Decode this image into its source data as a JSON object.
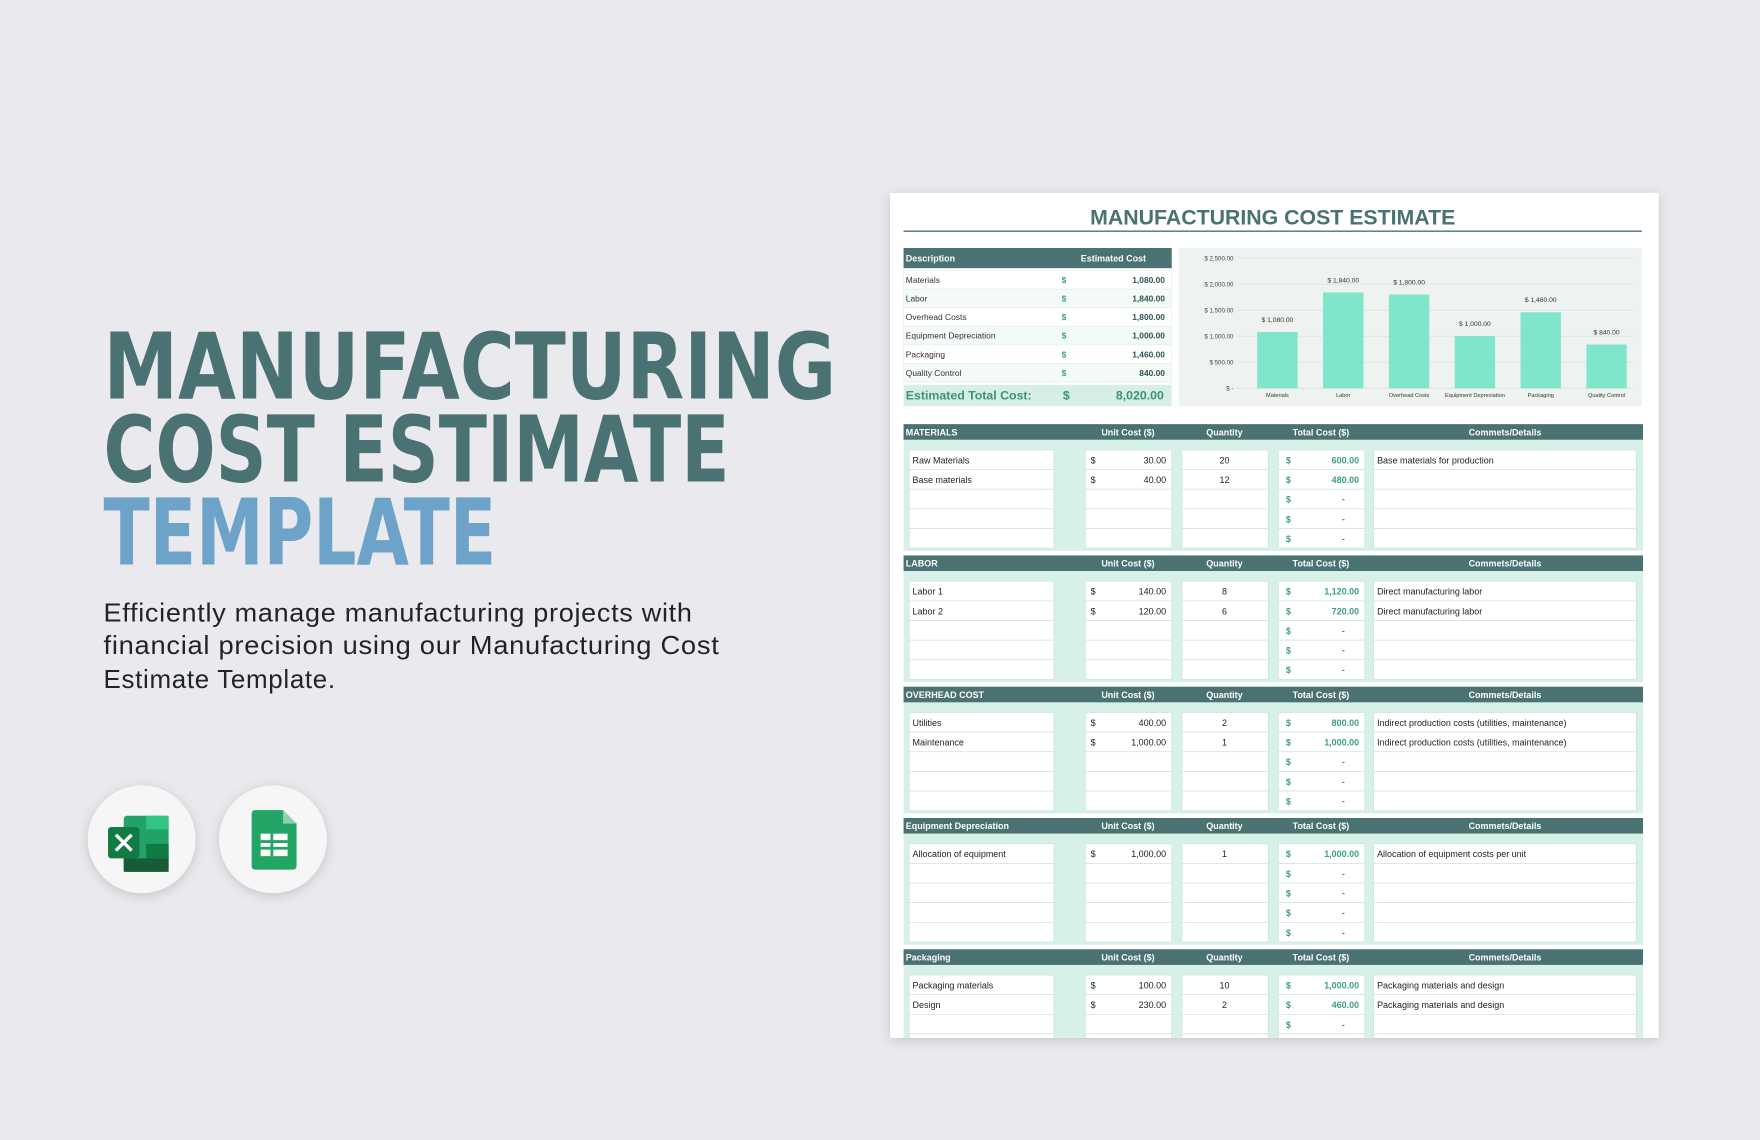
{
  "hero": {
    "title_lines": [
      "MANUFACTURING",
      "COST ESTIMATE"
    ],
    "title_accent": "TEMPLATE",
    "description_lines": [
      "Efficiently manage manufacturing projects with",
      "financial precision using our Manufacturing Cost",
      "Estimate Template."
    ]
  },
  "sheet": {
    "title": "MANUFACTURING COST ESTIMATE",
    "currency": "$",
    "blank_total": "-",
    "summary": {
      "headers": [
        "Description",
        "Estimated Cost"
      ],
      "rows": [
        {
          "label": "Materials",
          "value": "1,080.00"
        },
        {
          "label": "Labor",
          "value": "1,840.00"
        },
        {
          "label": "Overhead Costs",
          "value": "1,800.00"
        },
        {
          "label": "Equipment Depreciation",
          "value": "1,000.00"
        },
        {
          "label": "Packaging",
          "value": "1,460.00"
        },
        {
          "label": "Quality Control",
          "value": "840.00"
        }
      ],
      "total_label": "Estimated Total Cost:",
      "total": "8,020.00"
    },
    "column_headers": [
      "Unit Cost ($)",
      "Quantity",
      "Total Cost ($)",
      "Commets/Details"
    ],
    "sections": [
      {
        "name": "MATERIALS",
        "rows": [
          {
            "item": "Raw Materials",
            "unit_cost": "30.00",
            "quantity": 20,
            "total": "600.00",
            "comment": "Base materials for production"
          },
          {
            "item": "Base materials",
            "unit_cost": "40.00",
            "quantity": 12,
            "total": "480.00"
          }
        ]
      },
      {
        "name": "LABOR",
        "rows": [
          {
            "item": "Labor 1",
            "unit_cost": "140.00",
            "quantity": 8,
            "total": "1,120.00",
            "comment": "Direct manufacturing labor"
          },
          {
            "item": "Labor 2",
            "unit_cost": "120.00",
            "quantity": 6,
            "total": "720.00",
            "comment": "Direct manufacturing labor"
          }
        ]
      },
      {
        "name": "OVERHEAD COST",
        "rows": [
          {
            "item": "Utilities",
            "unit_cost": "400.00",
            "quantity": 2,
            "total": "800.00",
            "comment": "Indirect production costs (utilities, maintenance)"
          },
          {
            "item": "Maintenance",
            "unit_cost": "1,000.00",
            "quantity": 1,
            "total": "1,000.00",
            "comment": "Indirect production costs (utilities, maintenance)"
          }
        ]
      },
      {
        "name": "Equipment Depreciation",
        "rows": [
          {
            "item": "Allocation of equipment",
            "unit_cost": "1,000.00",
            "quantity": 1,
            "total": "1,000.00",
            "comment": "Allocation of equipment costs per unit"
          }
        ]
      },
      {
        "name": "Packaging",
        "rows": [
          {
            "item": "Packaging materials",
            "unit_cost": "100.00",
            "quantity": 10,
            "total": "1,000.00",
            "comment": "Packaging materials and design"
          },
          {
            "item": "Design",
            "unit_cost": "230.00",
            "quantity": 2,
            "total": "460.00",
            "comment": "Packaging materials and design"
          }
        ]
      }
    ]
  },
  "chart_data": {
    "type": "bar",
    "categories": [
      "Materials",
      "Labor",
      "Overhead Costs",
      "Equipment Depreciation",
      "Packaging",
      "Quality Control"
    ],
    "values": [
      1080,
      1840,
      1800,
      1000,
      1460,
      840
    ],
    "value_labels": [
      "$ 1,080.00",
      "$ 1,840.00",
      "$ 1,800.00",
      "$ 1,000.00",
      "$ 1,460.00",
      "$ 840.00"
    ],
    "color": "#7fe6cb",
    "ylim": [
      0,
      2500
    ],
    "yticks": [
      {
        "value": 0,
        "label": "$ -"
      },
      {
        "value": 500,
        "label": "$ 500.00"
      },
      {
        "value": 1000,
        "label": "$ 1,000.00"
      },
      {
        "value": 1500,
        "label": "$ 1,500.00"
      },
      {
        "value": 2000,
        "label": "$ 2,000.00"
      },
      {
        "value": 2500,
        "label": "$ 2,500.00"
      }
    ],
    "grid": true
  }
}
